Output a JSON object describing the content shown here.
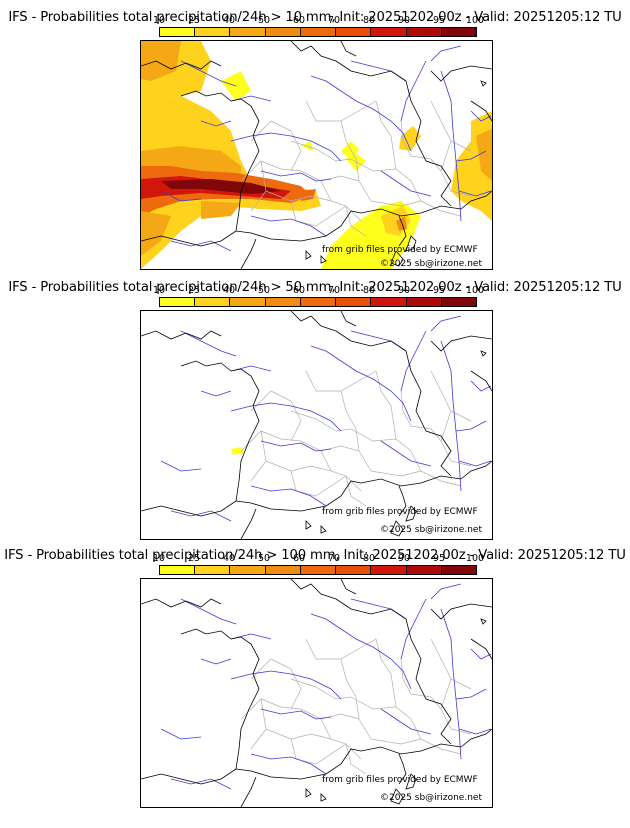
{
  "legend": {
    "ticks": [
      "10",
      "25",
      "40",
      "50",
      "60",
      "70",
      "80",
      "90",
      "95",
      "100"
    ],
    "colors": [
      "#ffff1e",
      "#ffd21e",
      "#f5a816",
      "#f18c12",
      "#ed6a0e",
      "#e8500a",
      "#d2160a",
      "#ad0a0a",
      "#80060a",
      "#540505"
    ]
  },
  "credits": {
    "source": "from grib files provided by ECMWF",
    "copyright": "©2025 sb@irizone.net"
  },
  "panels": [
    {
      "title": "IFS - Probabilities total precipitation/24h > 10 mm, Init: 20251202 00z - Valid: 20251205:12 TU"
    },
    {
      "title": "IFS - Probabilities total precipitation/24h > 50 mm, Init: 20251202 00z - Valid: 20251205:12 TU"
    },
    {
      "title": "IFS - Probabilities total precipitation/24h > 100 mm, Init: 20251202 00z - Valid: 20251205:12 TU"
    }
  ],
  "colors": {
    "coast": "#000000",
    "rivers": "#3b3bd6",
    "borders": "#a8a8a8"
  }
}
